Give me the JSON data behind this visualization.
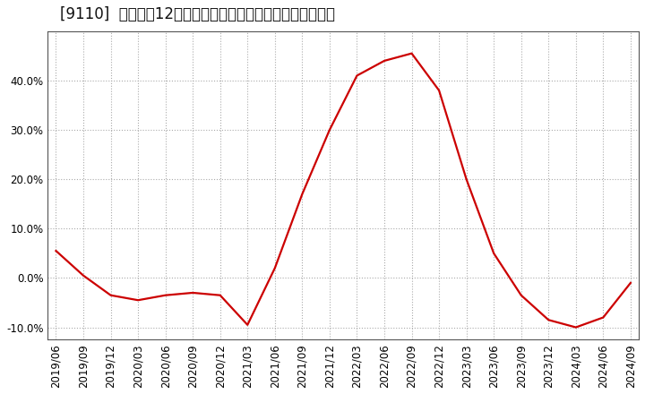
{
  "title": "[9110]  売上高の12か月移動合計の対前年同期増減率の推移",
  "line_color": "#cc0000",
  "background_color": "#ffffff",
  "plot_bg_color": "#ffffff",
  "grid_color": "#aaaaaa",
  "x_labels": [
    "2019/06",
    "2019/09",
    "2019/12",
    "2020/03",
    "2020/06",
    "2020/09",
    "2020/12",
    "2021/03",
    "2021/06",
    "2021/09",
    "2021/12",
    "2022/03",
    "2022/06",
    "2022/09",
    "2022/12",
    "2023/03",
    "2023/06",
    "2023/09",
    "2023/12",
    "2024/03",
    "2024/06",
    "2024/09"
  ],
  "y_values": [
    5.5,
    0.5,
    -3.5,
    -4.5,
    -3.5,
    -3.0,
    -3.5,
    -9.5,
    2.0,
    17.0,
    30.0,
    41.0,
    44.0,
    45.5,
    38.0,
    20.0,
    5.0,
    -3.5,
    -8.5,
    -10.0,
    -8.0,
    -1.0
  ],
  "ylim": [
    -12.5,
    50
  ],
  "yticks": [
    -10.0,
    0.0,
    10.0,
    20.0,
    30.0,
    40.0
  ],
  "title_fontsize": 12,
  "tick_fontsize": 8.5,
  "line_width": 1.6
}
